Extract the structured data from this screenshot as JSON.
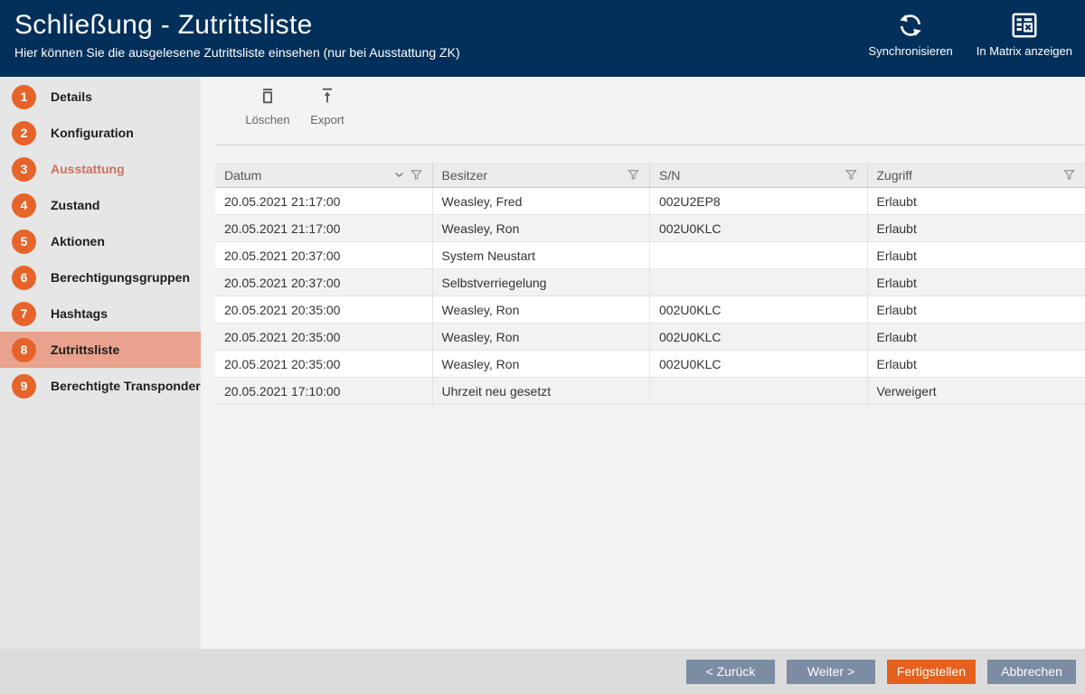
{
  "header": {
    "title": "Schließung - Zutrittsliste",
    "subtitle": "Hier können Sie die ausgelesene Zutrittsliste einsehen (nur bei Ausstattung ZK)",
    "actions": [
      {
        "label": "Synchronisieren",
        "icon": "sync-icon"
      },
      {
        "label": "In Matrix anzeigen",
        "icon": "matrix-icon"
      }
    ]
  },
  "sidebar": {
    "items": [
      {
        "number": "1",
        "label": "Details",
        "active": false,
        "highlighted": false
      },
      {
        "number": "2",
        "label": "Konfiguration",
        "active": false,
        "highlighted": false
      },
      {
        "number": "3",
        "label": "Ausstattung",
        "active": false,
        "highlighted": true
      },
      {
        "number": "4",
        "label": "Zustand",
        "active": false,
        "highlighted": false
      },
      {
        "number": "5",
        "label": "Aktionen",
        "active": false,
        "highlighted": false
      },
      {
        "number": "6",
        "label": "Berechtigungsgruppen",
        "active": false,
        "highlighted": false
      },
      {
        "number": "7",
        "label": "Hashtags",
        "active": false,
        "highlighted": false
      },
      {
        "number": "8",
        "label": "Zutrittsliste",
        "active": true,
        "highlighted": false
      },
      {
        "number": "9",
        "label": "Berechtigte Transponder",
        "active": false,
        "highlighted": false
      }
    ]
  },
  "toolbar": {
    "delete_label": "Löschen",
    "export_label": "Export"
  },
  "table": {
    "columns": [
      {
        "label": "Datum",
        "sorted": true,
        "filter_icon": "funnel-icon"
      },
      {
        "label": "Besitzer",
        "sorted": false,
        "filter_icon": "funnel-icon"
      },
      {
        "label": "S/N",
        "sorted": false,
        "filter_icon": "funnel-icon"
      },
      {
        "label": "Zugriff",
        "sorted": false,
        "filter_icon": "funnel-icon"
      }
    ],
    "rows": [
      [
        "20.05.2021 21:17:00",
        "Weasley, Fred",
        "002U2EP8",
        "Erlaubt"
      ],
      [
        "20.05.2021 21:17:00",
        "Weasley, Ron",
        "002U0KLC",
        "Erlaubt"
      ],
      [
        "20.05.2021 20:37:00",
        "System Neustart",
        "",
        "Erlaubt"
      ],
      [
        "20.05.2021 20:37:00",
        "Selbstverriegelung",
        "",
        "Erlaubt"
      ],
      [
        "20.05.2021 20:35:00",
        "Weasley, Ron",
        "002U0KLC",
        "Erlaubt"
      ],
      [
        "20.05.2021 20:35:00",
        "Weasley, Ron",
        "002U0KLC",
        "Erlaubt"
      ],
      [
        "20.05.2021 20:35:00",
        "Weasley, Ron",
        "002U0KLC",
        "Erlaubt"
      ],
      [
        "20.05.2021 17:10:00",
        "Uhrzeit neu gesetzt",
        "",
        "Verweigert"
      ]
    ]
  },
  "footer": {
    "buttons": [
      {
        "label": "< Zurück",
        "primary": false
      },
      {
        "label": "Weiter >",
        "primary": false
      },
      {
        "label": "Fertigstellen",
        "primary": true
      },
      {
        "label": "Abbrechen",
        "primary": false
      }
    ]
  },
  "colors": {
    "header_bg": "#03305a",
    "accent_orange": "#e6632a",
    "active_item_bg": "#e9a28d",
    "primary_button": "#e6601e",
    "secondary_button": "#7b8ca3"
  }
}
